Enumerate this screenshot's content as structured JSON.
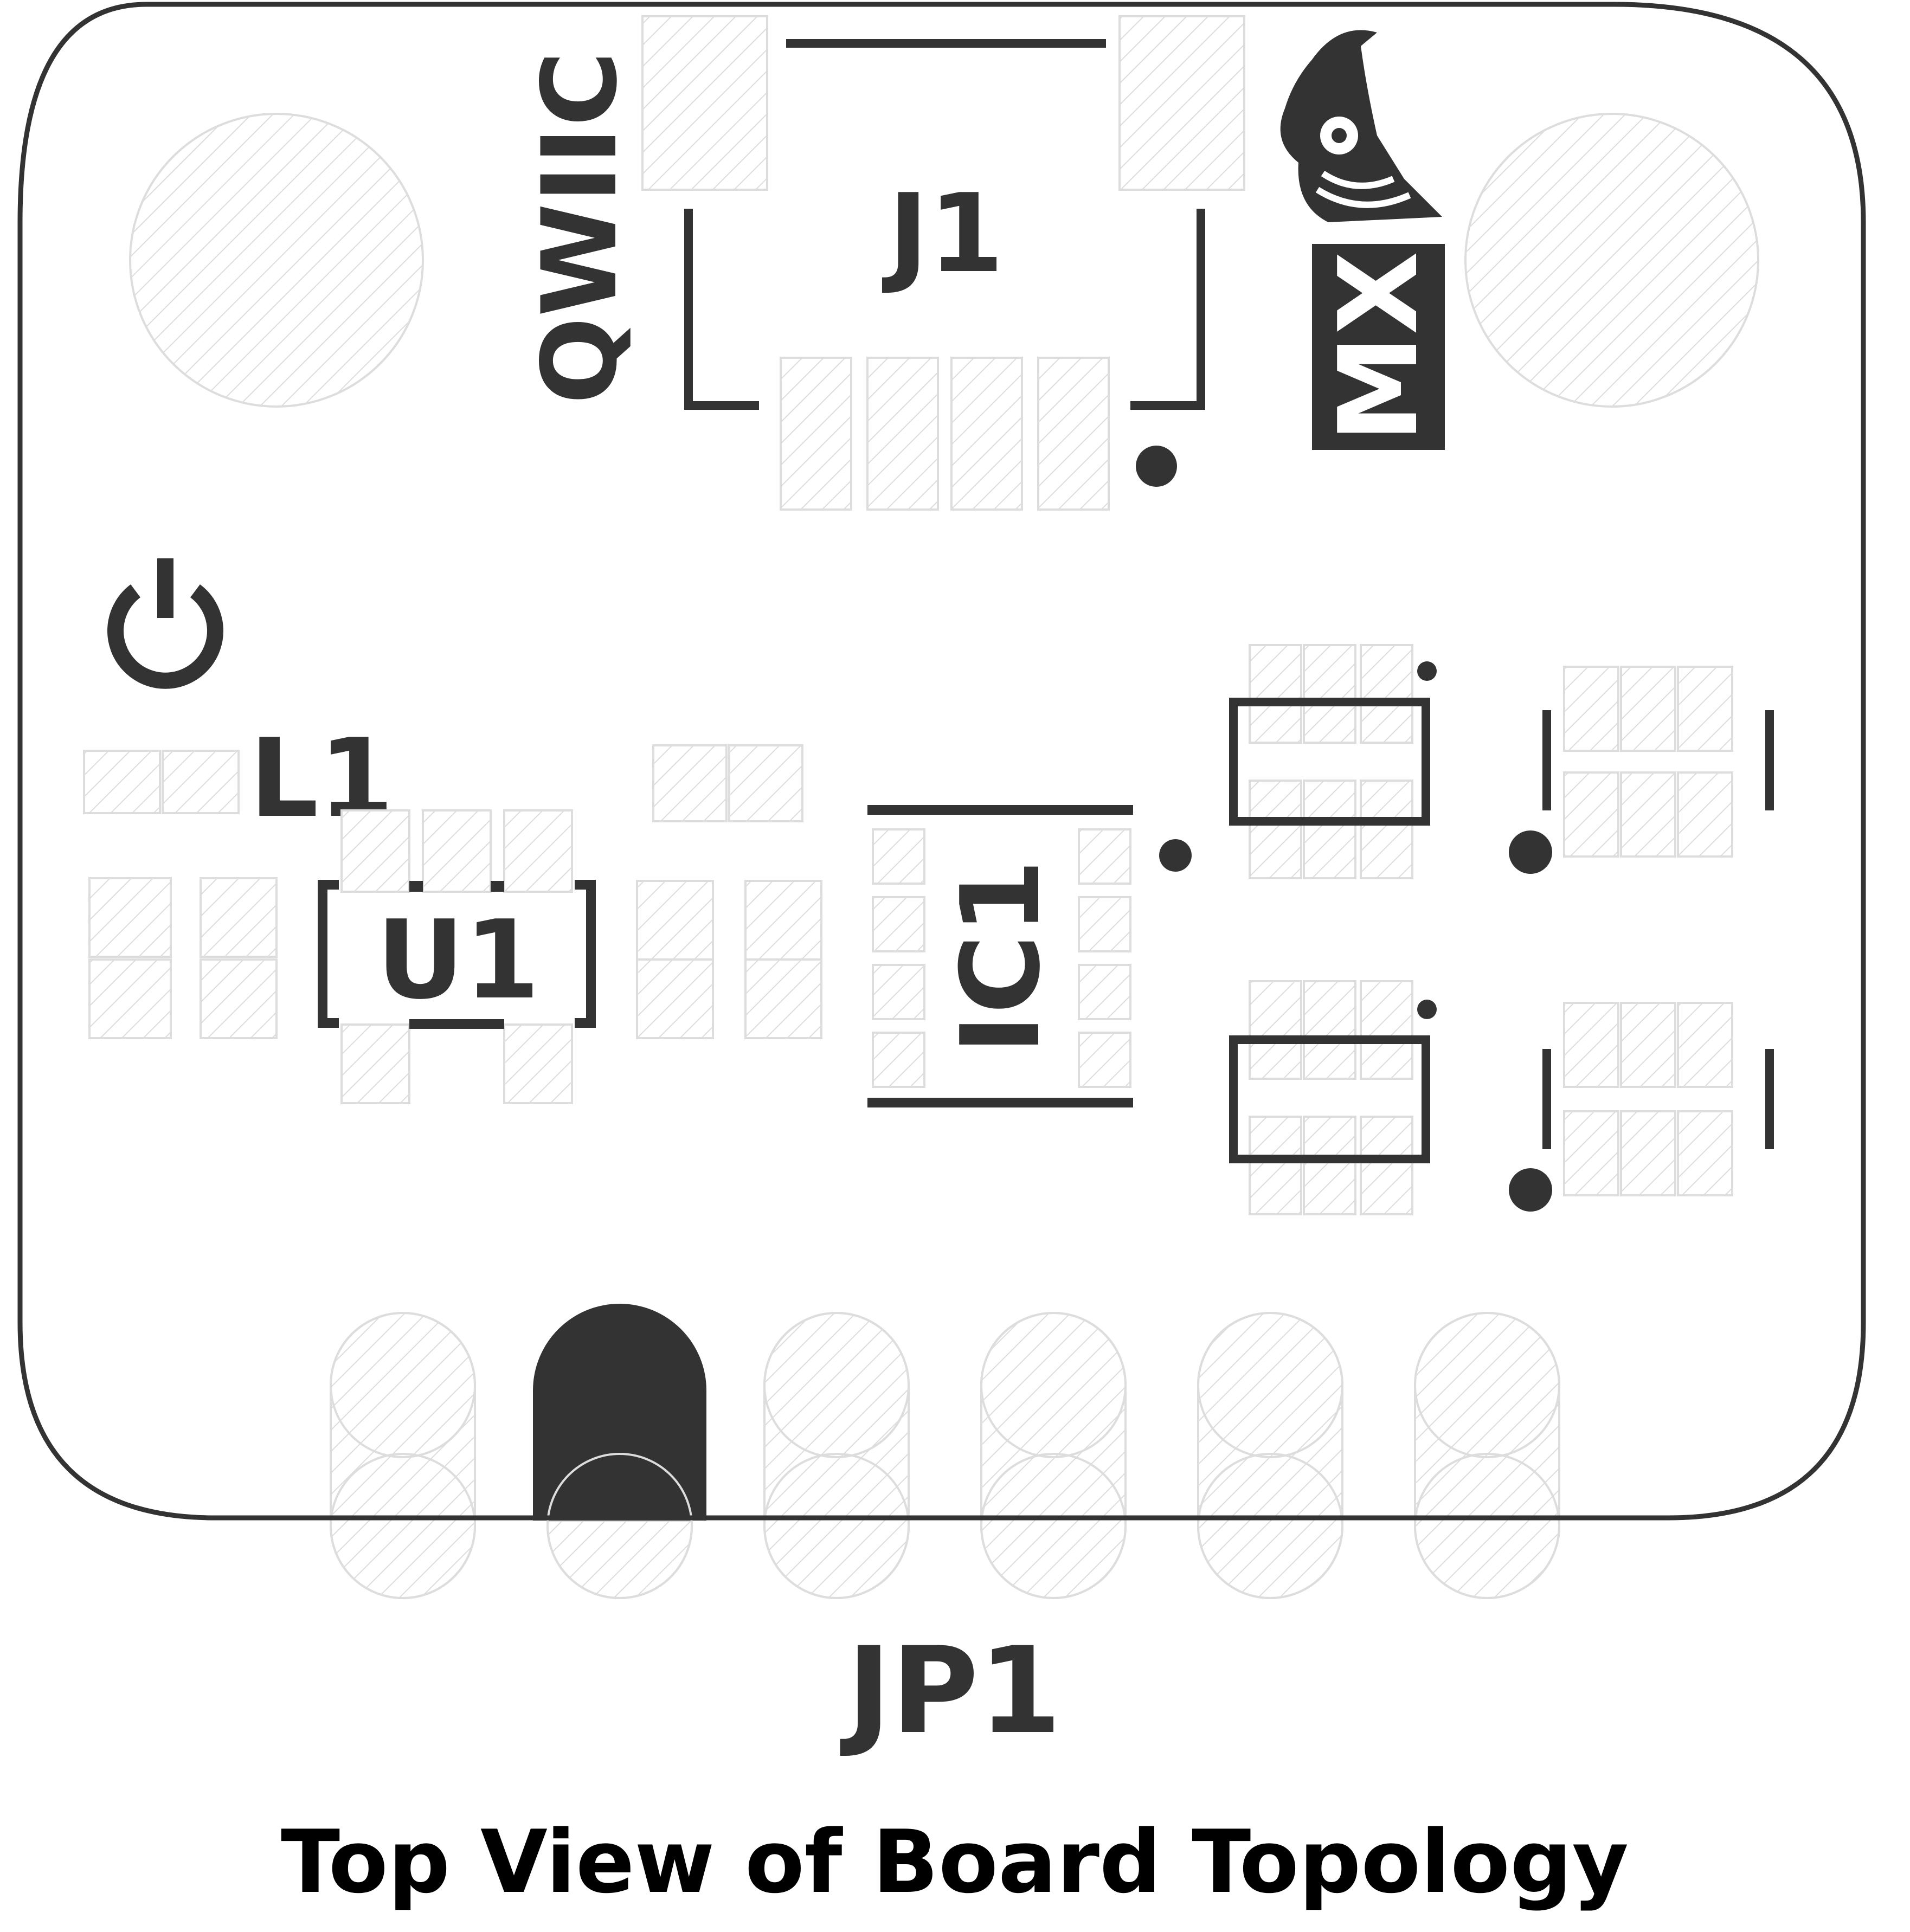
{
  "caption": "Top View of Board Topology",
  "labels": {
    "qwiic": "QWIIC",
    "j1": "J1",
    "l1": "L1",
    "u1": "U1",
    "ic1": "IC1",
    "jp1": "JP1",
    "logo_text": "MX"
  },
  "icons": {
    "power": "power-icon",
    "logo": "bird-logo"
  },
  "colors": {
    "silkscreen": "#333333",
    "pad_hatch": "#dddddd",
    "background": "#ffffff"
  },
  "header_pins": {
    "count": 6,
    "highlighted_pin_index": 1
  }
}
